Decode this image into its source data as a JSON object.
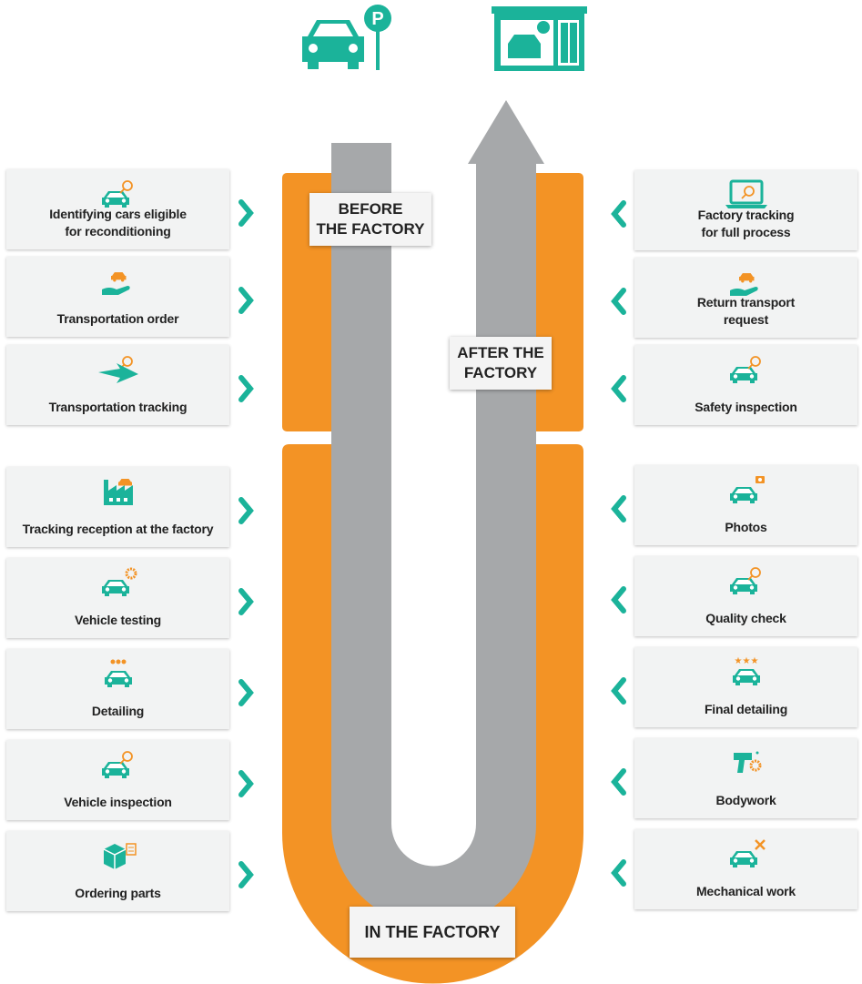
{
  "stages": {
    "before": [
      "BEFORE",
      "THE FACTORY"
    ],
    "after": [
      "AFTER THE",
      "FACTORY"
    ],
    "in": "IN THE FACTORY"
  },
  "left_steps": [
    [
      "Identifying cars eligible",
      "for reconditioning"
    ],
    [
      "Transportation order"
    ],
    [
      "Transportation tracking"
    ],
    [
      "Tracking reception at the factory"
    ],
    [
      "Vehicle testing"
    ],
    [
      "Detailing"
    ],
    [
      "Vehicle inspection"
    ],
    [
      "Ordering parts"
    ]
  ],
  "right_steps": [
    [
      "Factory tracking",
      "for full process"
    ],
    [
      "Return transport",
      "request"
    ],
    [
      "Safety inspection"
    ],
    [
      "Photos"
    ],
    [
      "Quality check"
    ],
    [
      "Final detailing"
    ],
    [
      "Bodywork"
    ],
    [
      "Mechanical work"
    ]
  ]
}
